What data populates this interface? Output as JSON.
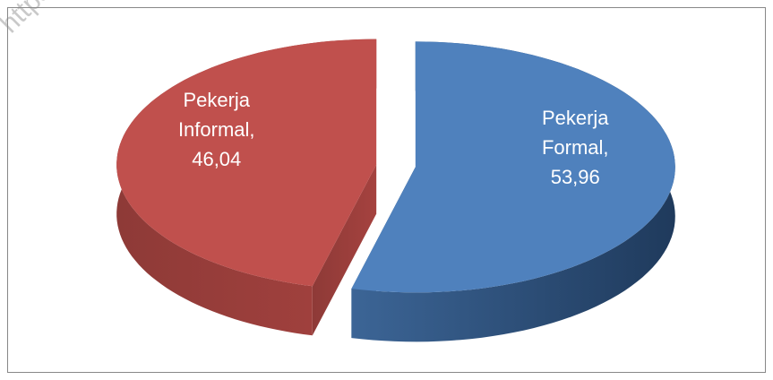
{
  "chart_data": {
    "type": "pie3d",
    "watermark": "https:/",
    "categories": [
      "Pekerja Formal",
      "Pekerja Informal"
    ],
    "values": [
      53.96,
      46.04
    ],
    "value_labels": [
      "53,96",
      "46,04"
    ],
    "label_separator": ",",
    "colors": [
      "#4f81bd",
      "#c0504d"
    ]
  }
}
